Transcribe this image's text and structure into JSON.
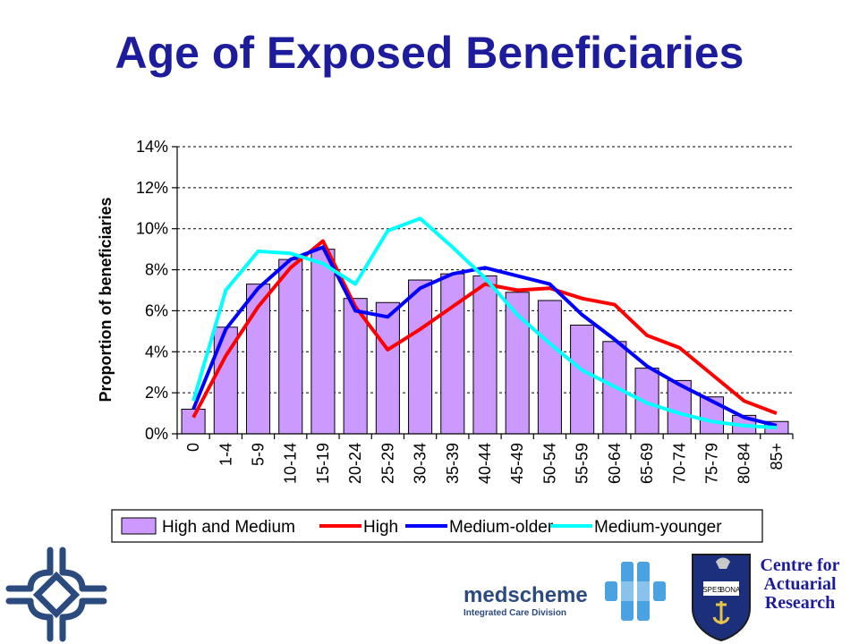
{
  "title": "Age of Exposed Beneficiaries",
  "chart_data": {
    "type": "bar",
    "title": "",
    "xlabel": "",
    "ylabel": "Proportion of beneficiaries",
    "ylim": [
      0,
      14
    ],
    "yticks": [
      "0%",
      "2%",
      "4%",
      "6%",
      "8%",
      "10%",
      "12%",
      "14%"
    ],
    "grid": true,
    "legend_position": "bottom",
    "categories": [
      "0",
      "1-4",
      "5-9",
      "10-14",
      "15-19",
      "20-24",
      "25-29",
      "30-34",
      "35-39",
      "40-44",
      "45-49",
      "50-54",
      "55-59",
      "60-64",
      "65-69",
      "70-74",
      "75-79",
      "80-84",
      "85+"
    ],
    "series": [
      {
        "name": "High and Medium",
        "kind": "bar",
        "color": "#cc99ff",
        "values": [
          1.2,
          5.2,
          7.3,
          8.5,
          9.0,
          6.6,
          6.4,
          7.5,
          7.8,
          7.7,
          6.9,
          6.5,
          5.3,
          4.5,
          3.2,
          2.6,
          1.8,
          0.9,
          0.6
        ]
      },
      {
        "name": "High",
        "kind": "line",
        "color": "#ff0000",
        "values": [
          0.8,
          3.8,
          6.2,
          8.1,
          9.4,
          6.2,
          4.1,
          5.1,
          6.2,
          7.3,
          7.0,
          7.1,
          6.6,
          6.3,
          4.8,
          4.2,
          2.9,
          1.6,
          1.0
        ]
      },
      {
        "name": "Medium-older",
        "kind": "line",
        "color": "#0000ff",
        "values": [
          1.2,
          5.1,
          7.1,
          8.5,
          9.1,
          6.0,
          5.7,
          7.1,
          7.8,
          8.1,
          7.7,
          7.3,
          5.8,
          4.6,
          3.3,
          2.4,
          1.6,
          0.8,
          0.4
        ]
      },
      {
        "name": "Medium-younger",
        "kind": "line",
        "color": "#00ffff",
        "values": [
          1.6,
          7.0,
          8.9,
          8.8,
          8.3,
          7.3,
          9.9,
          10.5,
          9.1,
          7.6,
          5.8,
          4.4,
          3.1,
          2.3,
          1.5,
          1.0,
          0.6,
          0.4,
          0.3
        ]
      }
    ]
  },
  "logos": {
    "medscheme_name": "medscheme",
    "medscheme_tagline": "Integrated Care Division",
    "car_line1": "Centre for",
    "car_line2": "Actuarial",
    "car_line3": "Research",
    "crest_motto_left": "SPES",
    "crest_motto_right": "BONA",
    "cross_icon": "interlocking-cross-icon",
    "medscheme_icon": "medscheme-mark-icon",
    "crest_icon": "university-crest-icon"
  }
}
